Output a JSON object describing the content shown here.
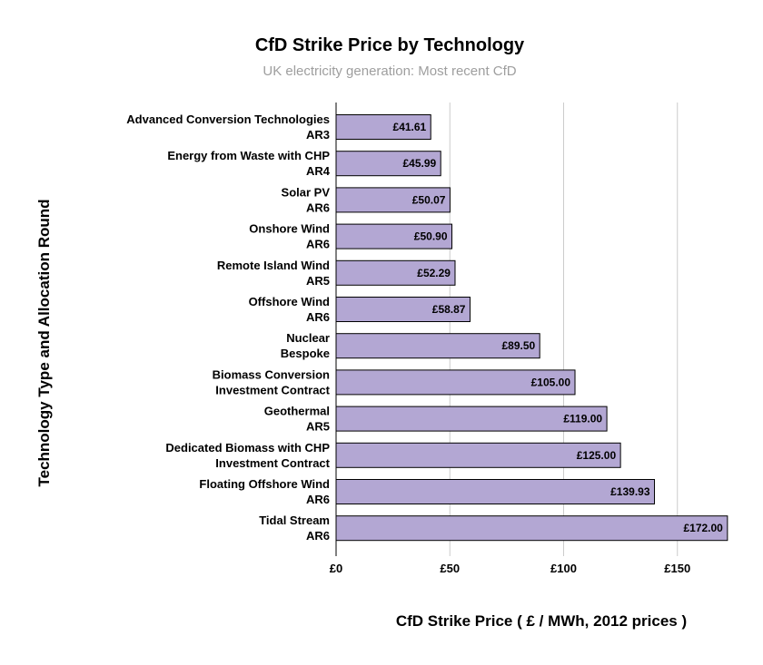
{
  "chart_data": {
    "type": "bar",
    "orientation": "horizontal",
    "title": "CfD Strike Price by Technology",
    "subtitle": "UK electricity generation: Most recent CfD",
    "xlabel": "CfD Strike Price ( £ / MWh, 2012 prices )",
    "ylabel": "Technology Type and Allocation Round",
    "categories": [
      [
        "Advanced Conversion Technologies",
        "AR3"
      ],
      [
        "Energy from Waste with CHP",
        "AR4"
      ],
      [
        "Solar PV",
        "AR6"
      ],
      [
        "Onshore Wind",
        "AR6"
      ],
      [
        "Remote Island Wind",
        "AR5"
      ],
      [
        "Offshore Wind",
        "AR6"
      ],
      [
        "Nuclear",
        "Bespoke"
      ],
      [
        "Biomass Conversion",
        "Investment Contract"
      ],
      [
        "Geothermal",
        "AR5"
      ],
      [
        "Dedicated Biomass with CHP",
        "Investment Contract"
      ],
      [
        "Floating Offshore Wind",
        "AR6"
      ],
      [
        "Tidal Stream",
        "AR6"
      ]
    ],
    "values": [
      41.61,
      45.99,
      50.07,
      50.9,
      52.29,
      58.87,
      89.5,
      105.0,
      119.0,
      125.0,
      139.93,
      172.0
    ],
    "value_labels": [
      "£41.61",
      "£45.99",
      "£50.07",
      "£50.90",
      "£52.29",
      "£58.87",
      "£89.50",
      "£105.00",
      "£119.00",
      "£125.00",
      "£139.93",
      "£172.00"
    ],
    "xlim": [
      0,
      172
    ],
    "xticks": [
      0,
      50,
      100,
      150
    ],
    "xtick_labels": [
      "£0",
      "£50",
      "£100",
      "£150"
    ],
    "grid": true,
    "legend": false,
    "bar_color": "#b3a7d3"
  }
}
